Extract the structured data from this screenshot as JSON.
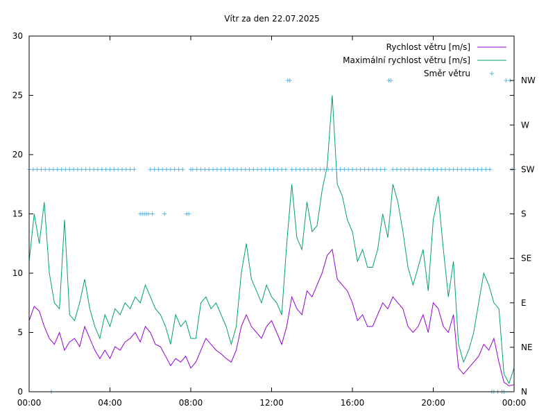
{
  "chart_data": {
    "type": "line",
    "title": "Vítr za den 22.07.2025",
    "xlabel": "",
    "ylabel": "",
    "x_ticks": [
      "00:00",
      "04:00",
      "08:00",
      "12:00",
      "16:00",
      "20:00",
      "00:00"
    ],
    "xlim_hours": [
      0,
      24
    ],
    "ylim": [
      0,
      30
    ],
    "y_ticks": [
      0,
      5,
      10,
      15,
      20,
      25,
      30
    ],
    "y2_ticks": [
      "N",
      "NE",
      "E",
      "SE",
      "S",
      "SW",
      "W",
      "NW"
    ],
    "legend": "top-right",
    "colors": {
      "speed": "#9400d3",
      "gust": "#009e73",
      "direction": "#56b4e9",
      "axes": "#000000"
    },
    "series": [
      {
        "name": "Rychlost větru [m/s]",
        "style": "line",
        "x_hours": [
          0.0,
          0.25,
          0.5,
          0.75,
          1.0,
          1.25,
          1.5,
          1.75,
          2.0,
          2.25,
          2.5,
          2.75,
          3.0,
          3.25,
          3.5,
          3.75,
          4.0,
          4.25,
          4.5,
          4.75,
          5.0,
          5.25,
          5.5,
          5.75,
          6.0,
          6.25,
          6.5,
          6.75,
          7.0,
          7.25,
          7.5,
          7.75,
          8.0,
          8.25,
          8.5,
          8.75,
          9.0,
          9.25,
          9.5,
          9.75,
          10.0,
          10.25,
          10.5,
          10.75,
          11.0,
          11.25,
          11.5,
          11.75,
          12.0,
          12.25,
          12.5,
          12.75,
          13.0,
          13.25,
          13.5,
          13.75,
          14.0,
          14.25,
          14.5,
          14.75,
          15.0,
          15.25,
          15.5,
          15.75,
          16.0,
          16.25,
          16.5,
          16.75,
          17.0,
          17.25,
          17.5,
          17.75,
          18.0,
          18.25,
          18.5,
          18.75,
          19.0,
          19.25,
          19.5,
          19.75,
          20.0,
          20.25,
          20.5,
          20.75,
          21.0,
          21.25,
          21.5,
          21.75,
          22.0,
          22.25,
          22.5,
          22.75,
          23.0,
          23.25,
          23.5,
          23.75,
          24.0
        ],
        "values": [
          6.0,
          7.2,
          6.8,
          5.5,
          4.5,
          4.0,
          5.0,
          3.5,
          4.2,
          4.5,
          3.8,
          5.5,
          4.5,
          3.5,
          2.8,
          3.5,
          2.8,
          3.8,
          3.5,
          4.2,
          4.5,
          5.0,
          4.2,
          5.5,
          5.0,
          4.0,
          3.8,
          3.0,
          2.2,
          2.8,
          2.5,
          3.0,
          2.0,
          2.5,
          3.5,
          4.5,
          4.0,
          3.5,
          3.2,
          2.8,
          2.5,
          3.5,
          5.5,
          6.5,
          5.5,
          5.0,
          4.5,
          5.5,
          6.0,
          5.0,
          4.0,
          5.5,
          8.0,
          7.0,
          6.5,
          8.5,
          8.0,
          9.0,
          10.0,
          11.5,
          12.0,
          9.5,
          9.0,
          8.5,
          7.5,
          6.0,
          6.5,
          5.5,
          5.5,
          6.5,
          7.5,
          7.0,
          8.0,
          7.5,
          7.0,
          5.5,
          5.0,
          5.5,
          6.5,
          5.0,
          7.5,
          7.0,
          5.5,
          5.0,
          6.5,
          2.0,
          1.5,
          2.0,
          2.5,
          3.0,
          4.0,
          3.5,
          4.5,
          2.5,
          0.8,
          0.5,
          0.6
        ]
      },
      {
        "name": "Maximální rychlost větru [m/s]",
        "style": "line",
        "x_hours": [
          0.0,
          0.25,
          0.5,
          0.75,
          1.0,
          1.25,
          1.5,
          1.75,
          2.0,
          2.25,
          2.5,
          2.75,
          3.0,
          3.25,
          3.5,
          3.75,
          4.0,
          4.25,
          4.5,
          4.75,
          5.0,
          5.25,
          5.5,
          5.75,
          6.0,
          6.25,
          6.5,
          6.75,
          7.0,
          7.25,
          7.5,
          7.75,
          8.0,
          8.25,
          8.5,
          8.75,
          9.0,
          9.25,
          9.5,
          9.75,
          10.0,
          10.25,
          10.5,
          10.75,
          11.0,
          11.25,
          11.5,
          11.75,
          12.0,
          12.25,
          12.5,
          12.75,
          13.0,
          13.25,
          13.5,
          13.75,
          14.0,
          14.25,
          14.5,
          14.75,
          15.0,
          15.25,
          15.5,
          15.75,
          16.0,
          16.25,
          16.5,
          16.75,
          17.0,
          17.25,
          17.5,
          17.75,
          18.0,
          18.25,
          18.5,
          18.75,
          19.0,
          19.25,
          19.5,
          19.75,
          20.0,
          20.25,
          20.5,
          20.75,
          21.0,
          21.25,
          21.5,
          21.75,
          22.0,
          22.25,
          22.5,
          22.75,
          23.0,
          23.25,
          23.5,
          23.75,
          24.0
        ],
        "values": [
          11.0,
          15.0,
          12.5,
          16.0,
          10.0,
          7.5,
          7.0,
          14.5,
          6.5,
          6.0,
          7.5,
          9.5,
          7.0,
          5.5,
          4.5,
          6.5,
          5.5,
          7.0,
          6.5,
          7.5,
          7.0,
          8.0,
          7.5,
          9.0,
          8.0,
          7.0,
          6.5,
          5.5,
          4.0,
          6.5,
          5.5,
          6.0,
          4.5,
          4.5,
          7.5,
          8.0,
          7.0,
          7.5,
          6.5,
          5.5,
          4.0,
          5.5,
          10.0,
          12.5,
          9.5,
          8.5,
          7.5,
          9.0,
          8.0,
          7.5,
          6.5,
          12.5,
          17.5,
          13.0,
          12.0,
          16.0,
          13.5,
          14.0,
          17.0,
          19.0,
          25.0,
          17.5,
          16.5,
          14.5,
          13.5,
          11.0,
          12.0,
          10.5,
          10.5,
          12.0,
          15.0,
          13.0,
          17.5,
          16.0,
          13.5,
          10.5,
          9.0,
          10.5,
          12.0,
          8.5,
          14.5,
          16.5,
          12.0,
          8.0,
          11.0,
          4.0,
          2.5,
          3.5,
          5.0,
          7.5,
          10.0,
          9.0,
          7.5,
          7.0,
          1.5,
          0.7,
          2.0
        ]
      },
      {
        "name": "Směr větru",
        "style": "points",
        "axis": "right",
        "x_hours": [
          0.0,
          0.2,
          0.4,
          0.6,
          0.8,
          1.0,
          1.1,
          1.2,
          1.4,
          1.6,
          1.8,
          2.0,
          2.2,
          2.4,
          2.6,
          2.8,
          3.0,
          3.2,
          3.4,
          3.6,
          3.8,
          4.0,
          4.2,
          4.4,
          4.6,
          4.8,
          5.0,
          5.2,
          5.5,
          5.6,
          5.7,
          5.8,
          5.9,
          6.0,
          6.1,
          6.2,
          6.4,
          6.6,
          6.7,
          6.8,
          7.0,
          7.2,
          7.4,
          7.6,
          7.8,
          7.9,
          8.0,
          8.1,
          8.3,
          8.5,
          8.7,
          8.9,
          9.1,
          9.3,
          9.5,
          9.7,
          9.9,
          10.1,
          10.3,
          10.5,
          10.7,
          10.9,
          11.1,
          11.3,
          11.5,
          11.7,
          11.9,
          12.1,
          12.3,
          12.5,
          12.7,
          12.8,
          12.9,
          13.0,
          13.2,
          13.4,
          13.6,
          13.8,
          14.0,
          14.2,
          14.4,
          14.6,
          14.8,
          15.0,
          15.2,
          15.4,
          15.6,
          15.8,
          16.0,
          16.2,
          16.4,
          16.6,
          16.8,
          17.0,
          17.2,
          17.4,
          17.6,
          17.8,
          17.9,
          18.0,
          18.2,
          18.4,
          18.6,
          18.8,
          19.0,
          19.2,
          19.4,
          19.6,
          19.8,
          20.0,
          20.2,
          20.4,
          20.6,
          20.8,
          21.0,
          21.2,
          21.4,
          21.6,
          21.8,
          22.0,
          22.2,
          22.4,
          22.6,
          22.8,
          22.9,
          23.0,
          23.2,
          23.4,
          23.5,
          23.6,
          23.8,
          23.9,
          24.0
        ],
        "values": [
          "SW",
          "SW",
          "SW",
          "SW",
          "SW",
          "SW",
          "N",
          "SW",
          "SW",
          "SW",
          "SW",
          "SW",
          "SW",
          "SW",
          "SW",
          "SW",
          "SW",
          "SW",
          "SW",
          "SW",
          "SW",
          "SW",
          "SW",
          "SW",
          "SW",
          "SW",
          "SW",
          "SW",
          "S",
          "S",
          "S",
          "S",
          "S",
          "SW",
          "S",
          "SW",
          "SW",
          "SW",
          "S",
          "SW",
          "SW",
          "SW",
          "SW",
          "SW",
          "S",
          "S",
          "SW",
          "SW",
          "SW",
          "SW",
          "SW",
          "SW",
          "SW",
          "SW",
          "SW",
          "SW",
          "SW",
          "SW",
          "SW",
          "SW",
          "SW",
          "SW",
          "SW",
          "SW",
          "SW",
          "SW",
          "SW",
          "SW",
          "SW",
          "SW",
          "SW",
          "NW",
          "NW",
          "SW",
          "SW",
          "SW",
          "SW",
          "SW",
          "SW",
          "SW",
          "SW",
          "SW",
          "SW",
          "SW",
          "SW",
          "SW",
          "SW",
          "SW",
          "SW",
          "SW",
          "SW",
          "SW",
          "SW",
          "SW",
          "SW",
          "SW",
          "SW",
          "NW",
          "NW",
          "SW",
          "SW",
          "SW",
          "SW",
          "SW",
          "SW",
          "SW",
          "SW",
          "SW",
          "SW",
          "SW",
          "SW",
          "SW",
          "SW",
          "SW",
          "SW",
          "SW",
          "SW",
          "SW",
          "SW",
          "SW",
          "SW",
          "SW",
          "SW",
          "SW",
          "N",
          "N",
          "N",
          "N",
          "N",
          "NW",
          "NW",
          "SW",
          "SW"
        ]
      }
    ]
  }
}
